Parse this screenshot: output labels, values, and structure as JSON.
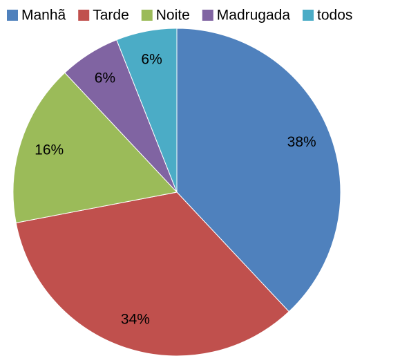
{
  "chart_data": {
    "type": "pie",
    "categories": [
      "Manhã",
      "Tarde",
      "Noite",
      "Madrugada",
      "todos"
    ],
    "values": [
      38,
      34,
      16,
      6,
      6
    ],
    "value_labels": [
      "38%",
      "34%",
      "16%",
      "6%",
      "6%"
    ],
    "colors": [
      "#4f81bd",
      "#c0504d",
      "#9bbb59",
      "#8064a2",
      "#4bacc6"
    ],
    "legend": "top"
  }
}
